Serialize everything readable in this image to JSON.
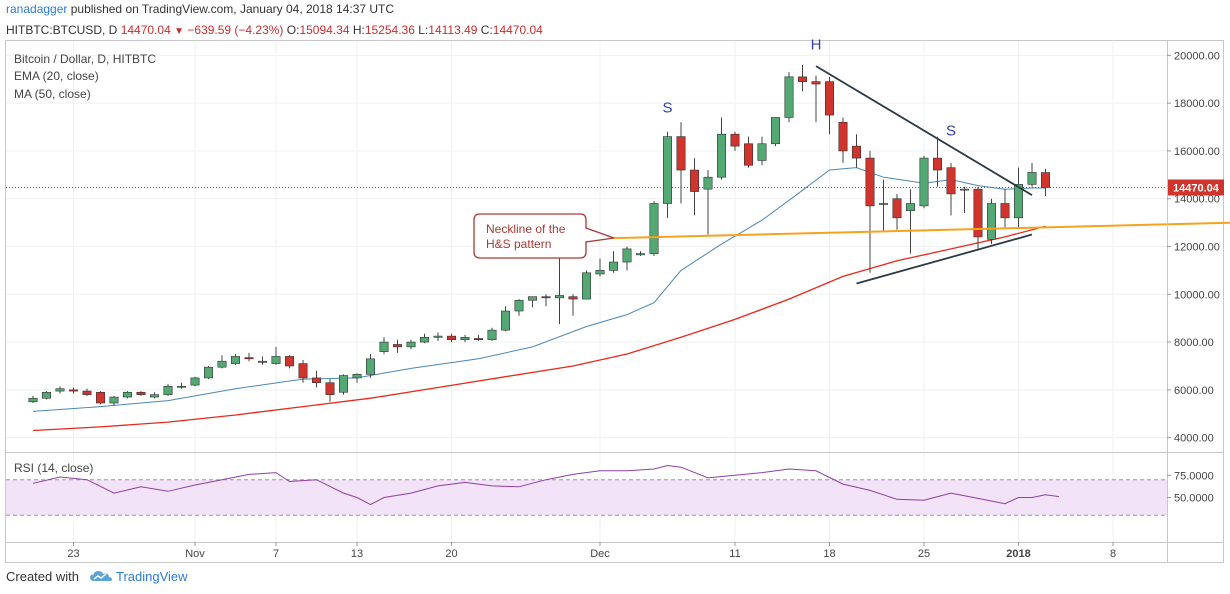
{
  "header": {
    "author": "ranadagger",
    "published_text": "published on TradingView.com, January 04, 2018 14:37 UTC"
  },
  "quote": {
    "symbol": "HITBTC:BTCUSD, D",
    "last": "14470.04",
    "arrow": "▼",
    "change": "−639.59 (−4.23%)",
    "open_label": "O:",
    "open": "15094.34",
    "high_label": "H:",
    "high": "15254.36",
    "low_label": "L:",
    "low": "14113.49",
    "close_label": "C:",
    "close": "14470.04"
  },
  "legend": {
    "title": "Bitcoin / Dollar, D, HITBTC",
    "ema": "EMA (20, close)",
    "ma": "MA (50, close)",
    "rsi": "RSI (14, close)"
  },
  "footer": {
    "created_with": "Created with",
    "brand": "TradingView"
  },
  "colors": {
    "up": "#53a874",
    "down": "#d0342c",
    "ema": "#4a87b8",
    "ma": "#e8291c",
    "neckline": "#f7a21e",
    "trendline": "#2b3a46",
    "rsi": "#8e3fa6",
    "rsi_band": "#f3e3f8",
    "price_tag": "#d0342c"
  },
  "chart_data": {
    "type": "candlestick",
    "title": "Bitcoin / Dollar, D, HITBTC",
    "y_axis": {
      "min": 3400,
      "max": 20600,
      "ticks": [
        4000,
        6000,
        8000,
        10000,
        12000,
        14000,
        16000,
        18000,
        20000
      ],
      "tick_labels": [
        "4000.00",
        "6000.00",
        "8000.00",
        "10000.00",
        "12000.00",
        "14000.00",
        "16000.00",
        "18000.00",
        "20000.00"
      ]
    },
    "x_axis": {
      "ticks": [
        {
          "day": 3,
          "label": "23"
        },
        {
          "day": 12,
          "label": "Nov"
        },
        {
          "day": 18,
          "label": "7"
        },
        {
          "day": 24,
          "label": "13"
        },
        {
          "day": 31,
          "label": "20"
        },
        {
          "day": 42,
          "label": "Dec"
        },
        {
          "day": 52,
          "label": "11"
        },
        {
          "day": 59,
          "label": "18"
        },
        {
          "day": 66,
          "label": "25"
        },
        {
          "day": 73,
          "label": "2018"
        },
        {
          "day": 80,
          "label": "8"
        }
      ],
      "day_range": [
        -2,
        84
      ]
    },
    "last_price": {
      "value": 14470.04,
      "label": "14470.04"
    },
    "candles": [
      {
        "o": 5500,
        "h": 5750,
        "l": 5450,
        "c": 5650
      },
      {
        "o": 5650,
        "h": 5950,
        "l": 5600,
        "c": 5900
      },
      {
        "o": 5950,
        "h": 6150,
        "l": 5850,
        "c": 6050
      },
      {
        "o": 6000,
        "h": 6100,
        "l": 5850,
        "c": 5950
      },
      {
        "o": 5950,
        "h": 6050,
        "l": 5750,
        "c": 5800
      },
      {
        "o": 5900,
        "h": 5950,
        "l": 5400,
        "c": 5450
      },
      {
        "o": 5450,
        "h": 5750,
        "l": 5350,
        "c": 5700
      },
      {
        "o": 5700,
        "h": 5950,
        "l": 5650,
        "c": 5900
      },
      {
        "o": 5900,
        "h": 5950,
        "l": 5750,
        "c": 5800
      },
      {
        "o": 5700,
        "h": 5900,
        "l": 5650,
        "c": 5800
      },
      {
        "o": 5800,
        "h": 6250,
        "l": 5750,
        "c": 6150
      },
      {
        "o": 6150,
        "h": 6300,
        "l": 6050,
        "c": 6150
      },
      {
        "o": 6200,
        "h": 6550,
        "l": 6150,
        "c": 6500
      },
      {
        "o": 6500,
        "h": 7000,
        "l": 6450,
        "c": 6950
      },
      {
        "o": 6950,
        "h": 7450,
        "l": 6900,
        "c": 7200
      },
      {
        "o": 7100,
        "h": 7500,
        "l": 7050,
        "c": 7400
      },
      {
        "o": 7350,
        "h": 7550,
        "l": 7200,
        "c": 7300
      },
      {
        "o": 7150,
        "h": 7400,
        "l": 7050,
        "c": 7200
      },
      {
        "o": 7100,
        "h": 7800,
        "l": 7050,
        "c": 7400
      },
      {
        "o": 7400,
        "h": 7450,
        "l": 6900,
        "c": 7000
      },
      {
        "o": 7100,
        "h": 7250,
        "l": 6300,
        "c": 6500
      },
      {
        "o": 6500,
        "h": 6800,
        "l": 6100,
        "c": 6300
      },
      {
        "o": 6300,
        "h": 6450,
        "l": 5500,
        "c": 5800
      },
      {
        "o": 5900,
        "h": 6650,
        "l": 5800,
        "c": 6600
      },
      {
        "o": 6500,
        "h": 6700,
        "l": 6300,
        "c": 6650
      },
      {
        "o": 6650,
        "h": 7500,
        "l": 6500,
        "c": 7300
      },
      {
        "o": 7600,
        "h": 8200,
        "l": 7500,
        "c": 8000
      },
      {
        "o": 7900,
        "h": 8100,
        "l": 7550,
        "c": 7800
      },
      {
        "o": 7800,
        "h": 8100,
        "l": 7700,
        "c": 8000
      },
      {
        "o": 8000,
        "h": 8350,
        "l": 7950,
        "c": 8200
      },
      {
        "o": 8200,
        "h": 8400,
        "l": 8050,
        "c": 8250
      },
      {
        "o": 8250,
        "h": 8350,
        "l": 8000,
        "c": 8100
      },
      {
        "o": 8100,
        "h": 8300,
        "l": 8000,
        "c": 8200
      },
      {
        "o": 8150,
        "h": 8300,
        "l": 8050,
        "c": 8100
      },
      {
        "o": 8100,
        "h": 8600,
        "l": 8050,
        "c": 8500
      },
      {
        "o": 8500,
        "h": 9500,
        "l": 8450,
        "c": 9300
      },
      {
        "o": 9300,
        "h": 9800,
        "l": 9100,
        "c": 9750
      },
      {
        "o": 9750,
        "h": 9900,
        "l": 9450,
        "c": 9900
      },
      {
        "o": 9900,
        "h": 10000,
        "l": 9500,
        "c": 9850
      },
      {
        "o": 9850,
        "h": 11500,
        "l": 8750,
        "c": 9950
      },
      {
        "o": 9900,
        "h": 10000,
        "l": 9100,
        "c": 9800
      },
      {
        "o": 9800,
        "h": 11000,
        "l": 9800,
        "c": 10900
      },
      {
        "o": 10850,
        "h": 11500,
        "l": 10750,
        "c": 11000
      },
      {
        "o": 11000,
        "h": 11800,
        "l": 10900,
        "c": 11350
      },
      {
        "o": 11350,
        "h": 12000,
        "l": 11000,
        "c": 11900
      },
      {
        "o": 11650,
        "h": 11800,
        "l": 11600,
        "c": 11700
      },
      {
        "o": 11700,
        "h": 13900,
        "l": 11600,
        "c": 13800
      },
      {
        "o": 13800,
        "h": 16800,
        "l": 13200,
        "c": 16600
      },
      {
        "o": 16600,
        "h": 17200,
        "l": 13800,
        "c": 15200
      },
      {
        "o": 15200,
        "h": 15700,
        "l": 13300,
        "c": 14300
      },
      {
        "o": 14400,
        "h": 15200,
        "l": 12500,
        "c": 14900
      },
      {
        "o": 14900,
        "h": 17400,
        "l": 14800,
        "c": 16700
      },
      {
        "o": 16700,
        "h": 16800,
        "l": 16000,
        "c": 16200
      },
      {
        "o": 16300,
        "h": 16600,
        "l": 15300,
        "c": 15400
      },
      {
        "o": 15600,
        "h": 16600,
        "l": 15400,
        "c": 16300
      },
      {
        "o": 16300,
        "h": 17300,
        "l": 16200,
        "c": 17400
      },
      {
        "o": 17400,
        "h": 19300,
        "l": 17200,
        "c": 19100
      },
      {
        "o": 19100,
        "h": 19600,
        "l": 18500,
        "c": 18900
      },
      {
        "o": 18900,
        "h": 19150,
        "l": 17200,
        "c": 18800
      },
      {
        "o": 18900,
        "h": 19100,
        "l": 16700,
        "c": 17500
      },
      {
        "o": 17200,
        "h": 17400,
        "l": 15500,
        "c": 16000
      },
      {
        "o": 16200,
        "h": 16700,
        "l": 15300,
        "c": 15700
      },
      {
        "o": 15700,
        "h": 16000,
        "l": 10900,
        "c": 13700
      },
      {
        "o": 13800,
        "h": 14800,
        "l": 12600,
        "c": 13800
      },
      {
        "o": 14000,
        "h": 14200,
        "l": 12700,
        "c": 13200
      },
      {
        "o": 13500,
        "h": 14400,
        "l": 11700,
        "c": 13800
      },
      {
        "o": 13700,
        "h": 15800,
        "l": 13600,
        "c": 15700
      },
      {
        "o": 15700,
        "h": 16600,
        "l": 14500,
        "c": 15200
      },
      {
        "o": 15300,
        "h": 15500,
        "l": 13300,
        "c": 14200
      },
      {
        "o": 14400,
        "h": 14500,
        "l": 13400,
        "c": 14400
      },
      {
        "o": 14400,
        "h": 14500,
        "l": 11900,
        "c": 12400
      },
      {
        "o": 12300,
        "h": 14000,
        "l": 12100,
        "c": 13800
      },
      {
        "o": 13800,
        "h": 14400,
        "l": 12800,
        "c": 13200
      },
      {
        "o": 13200,
        "h": 15300,
        "l": 12800,
        "c": 14600
      },
      {
        "o": 14600,
        "h": 15500,
        "l": 14500,
        "c": 15100
      },
      {
        "o": 15094.34,
        "h": 15254.36,
        "l": 14113.49,
        "c": 14470.04
      }
    ],
    "series": [
      {
        "name": "EMA (20, close)",
        "points": [
          [
            0,
            5100
          ],
          [
            5,
            5300
          ],
          [
            10,
            5550
          ],
          [
            15,
            6050
          ],
          [
            20,
            6450
          ],
          [
            24,
            6500
          ],
          [
            28,
            6900
          ],
          [
            33,
            7300
          ],
          [
            37,
            7800
          ],
          [
            41,
            8650
          ],
          [
            44,
            9150
          ],
          [
            46,
            9650
          ],
          [
            48,
            11000
          ],
          [
            51,
            12100
          ],
          [
            54,
            13100
          ],
          [
            57,
            14350
          ],
          [
            59,
            15200
          ],
          [
            61,
            15300
          ],
          [
            63,
            14900
          ],
          [
            66,
            14650
          ],
          [
            68,
            14800
          ],
          [
            70,
            14550
          ],
          [
            72,
            14400
          ],
          [
            74,
            14450
          ],
          [
            75,
            14450
          ]
        ]
      },
      {
        "name": "MA (50, close)",
        "points": [
          [
            0,
            4300
          ],
          [
            5,
            4450
          ],
          [
            10,
            4650
          ],
          [
            15,
            4950
          ],
          [
            20,
            5300
          ],
          [
            25,
            5650
          ],
          [
            30,
            6100
          ],
          [
            35,
            6550
          ],
          [
            40,
            7000
          ],
          [
            44,
            7500
          ],
          [
            48,
            8200
          ],
          [
            52,
            8950
          ],
          [
            56,
            9800
          ],
          [
            60,
            10750
          ],
          [
            64,
            11400
          ],
          [
            68,
            11900
          ],
          [
            72,
            12400
          ],
          [
            75,
            12850
          ]
        ]
      },
      {
        "name": "RSI (14, close)",
        "points": [
          [
            0,
            66
          ],
          [
            2,
            73
          ],
          [
            4,
            70
          ],
          [
            6,
            55
          ],
          [
            8,
            62
          ],
          [
            10,
            57
          ],
          [
            12,
            64
          ],
          [
            14,
            70
          ],
          [
            16,
            76
          ],
          [
            18,
            78
          ],
          [
            19,
            68
          ],
          [
            21,
            70
          ],
          [
            23,
            55
          ],
          [
            24,
            50
          ],
          [
            25,
            42
          ],
          [
            26,
            50
          ],
          [
            28,
            55
          ],
          [
            30,
            63
          ],
          [
            32,
            67
          ],
          [
            34,
            63
          ],
          [
            36,
            62
          ],
          [
            38,
            70
          ],
          [
            40,
            76
          ],
          [
            42,
            80
          ],
          [
            44,
            80
          ],
          [
            46,
            82
          ],
          [
            47,
            86
          ],
          [
            48,
            84
          ],
          [
            50,
            72
          ],
          [
            52,
            75
          ],
          [
            54,
            78
          ],
          [
            56,
            82
          ],
          [
            58,
            80
          ],
          [
            60,
            65
          ],
          [
            62,
            58
          ],
          [
            64,
            48
          ],
          [
            66,
            47
          ],
          [
            68,
            55
          ],
          [
            70,
            49
          ],
          [
            72,
            43
          ],
          [
            73,
            50
          ],
          [
            74,
            50
          ],
          [
            75,
            53
          ],
          [
            76,
            51
          ]
        ]
      }
    ],
    "rsi": {
      "levels": [
        30,
        70
      ],
      "y_min": 0,
      "y_max": 100,
      "tick_labels": [
        "75.0000",
        "50.0000"
      ],
      "ticks": [
        75,
        50
      ]
    },
    "annotations": {
      "neckline": {
        "from": [
          43,
          12350
        ],
        "to": [
          89,
          13000
        ]
      },
      "resistance": {
        "from": [
          58,
          19550
        ],
        "to": [
          74,
          14150
        ]
      },
      "support": {
        "from": [
          61,
          10450
        ],
        "to": [
          74,
          12500
        ]
      },
      "labels": [
        {
          "text": "S",
          "day": 47,
          "price": 17600
        },
        {
          "text": "H",
          "day": 58,
          "price": 20250
        },
        {
          "text": "S",
          "day": 68,
          "price": 16650
        }
      ],
      "callout_text": "Neckline of the H&S pattern"
    }
  }
}
